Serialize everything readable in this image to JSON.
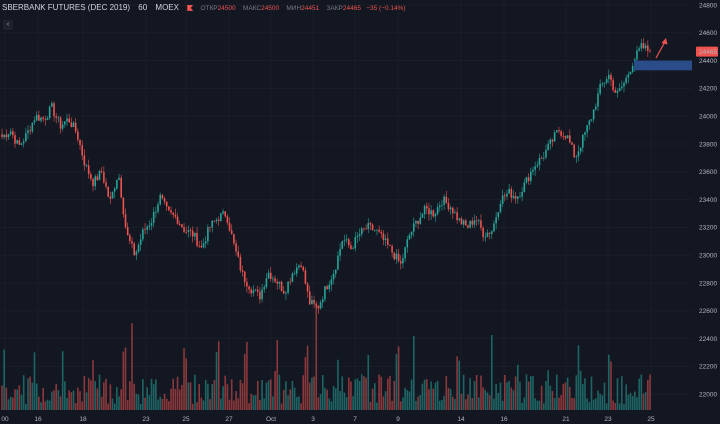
{
  "header": {
    "symbol": "SBERBANK FUTURES (DEC 2019)",
    "interval": "60",
    "exchange": "MOEX",
    "open_label": "ОТКР",
    "open_value": "24500",
    "high_label": "МАКС",
    "high_value": "24500",
    "low_label": "МИН",
    "low_value": "24451",
    "close_label": "ЗАКР",
    "close_value": "24465",
    "change_value": "−35 (−0.14%)"
  },
  "colors": {
    "up": "#26a69a",
    "down": "#ef5350",
    "background": "#131722",
    "grid": "#1e222d",
    "zone": "#2a4d8a",
    "arrow": "#ef5350"
  },
  "collapse_glyph": "‹",
  "chart_data": {
    "type": "candlestick",
    "y_ticks": [
      "24800",
      "24600",
      "24400",
      "24200",
      "24000",
      "23800",
      "23600",
      "23400",
      "23200",
      "23000",
      "22800",
      "22600",
      "22400",
      "22200",
      "22000"
    ],
    "x_ticks": [
      "00",
      "16",
      "18",
      "23",
      "25",
      "27",
      "Oct",
      "3",
      "7",
      "9",
      "14",
      "16",
      "21",
      "23",
      "25"
    ],
    "ylim": [
      21900,
      24800
    ],
    "last_price": "24465",
    "resistance_zone": [
      24330,
      24400
    ],
    "close_path_keypoints": [
      23850,
      23900,
      23780,
      23870,
      24000,
      23980,
      24060,
      23930,
      23980,
      23880,
      23650,
      23520,
      23600,
      23380,
      23600,
      23150,
      23000,
      23170,
      23250,
      23420,
      23300,
      23270,
      23180,
      23150,
      23050,
      23200,
      23270,
      23300,
      23050,
      22850,
      22760,
      22700,
      22880,
      22820,
      22740,
      22880,
      22950,
      22660,
      22620,
      22770,
      22890,
      23120,
      23050,
      23150,
      23200,
      23180,
      23100,
      23020,
      22930,
      23140,
      23250,
      23330,
      23300,
      23400,
      23350,
      23250,
      23200,
      23270,
      23150,
      23180,
      23400,
      23450,
      23420,
      23520,
      23640,
      23700,
      23800,
      23900,
      23860,
      23700,
      23850,
      24000,
      24200,
      24300,
      24150,
      24250,
      24400,
      24500,
      24465
    ]
  }
}
